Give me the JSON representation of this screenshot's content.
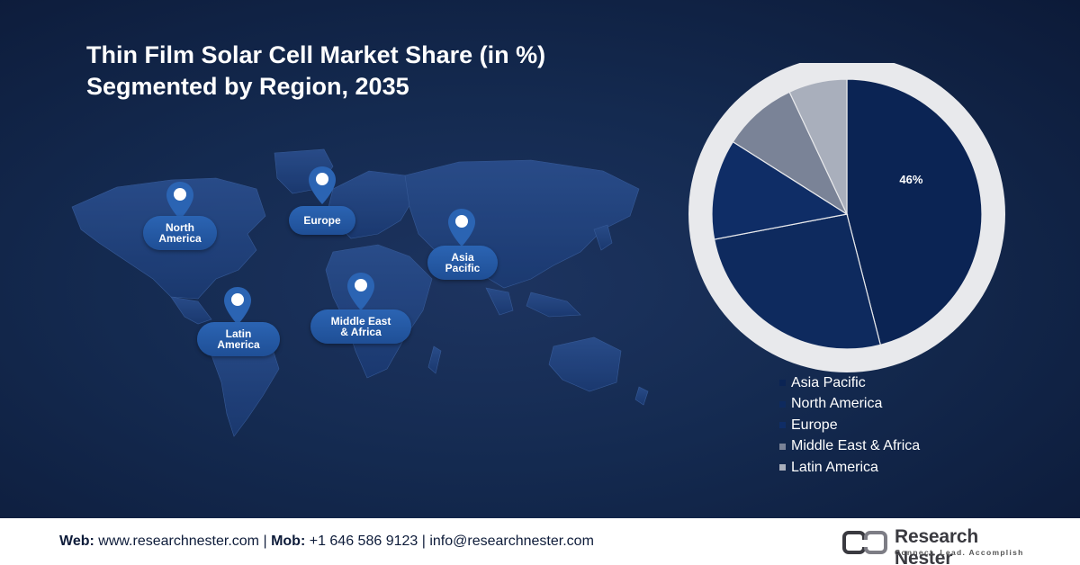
{
  "title": {
    "line1": "Thin Film Solar Cell Market Share (in %)",
    "line2": "Segmented by Region, 2035"
  },
  "map": {
    "regions": [
      {
        "name": "north-america",
        "line1": "North",
        "line2": "America"
      },
      {
        "name": "europe",
        "line1": "Europe",
        "line2": ""
      },
      {
        "name": "asia-pacific",
        "line1": "Asia",
        "line2": "Pacific"
      },
      {
        "name": "latin-america",
        "line1": "Latin",
        "line2": "America"
      },
      {
        "name": "middle-east-africa",
        "line1": "Middle East",
        "line2": "& Africa"
      }
    ]
  },
  "chart_data": {
    "type": "pie",
    "title": "Thin Film Solar Cell Market Share (in %) Segmented by Region, 2035",
    "slices": [
      {
        "label": "Asia Pacific",
        "value": 46,
        "color": "#0b2454",
        "data_label": "46%"
      },
      {
        "label": "North America",
        "value": 26,
        "color": "#0e2a5e",
        "data_label": ""
      },
      {
        "label": "Europe",
        "value": 12,
        "color": "#0f2d66",
        "data_label": ""
      },
      {
        "label": "Middle East & Africa",
        "value": 9,
        "color": "#7a8397",
        "data_label": ""
      },
      {
        "label": "Latin America",
        "value": 7,
        "color": "#a9afbc",
        "data_label": ""
      }
    ],
    "legend_position": "bottom-right"
  },
  "footer": {
    "web_label": "Web:",
    "web_value": "www.researchnester.com",
    "sep1": "|",
    "mob_label": "Mob:",
    "mob_value": "+1 646 586 9123",
    "sep2": "|",
    "email": "info@researchnester.com",
    "logo_name": "Research Nester",
    "logo_tagline": "Connect. Lead. Accomplish"
  },
  "colors": {
    "background": "#142a50",
    "label_blue": "#2b64b3",
    "pie_ring": "#e8e9ec"
  }
}
